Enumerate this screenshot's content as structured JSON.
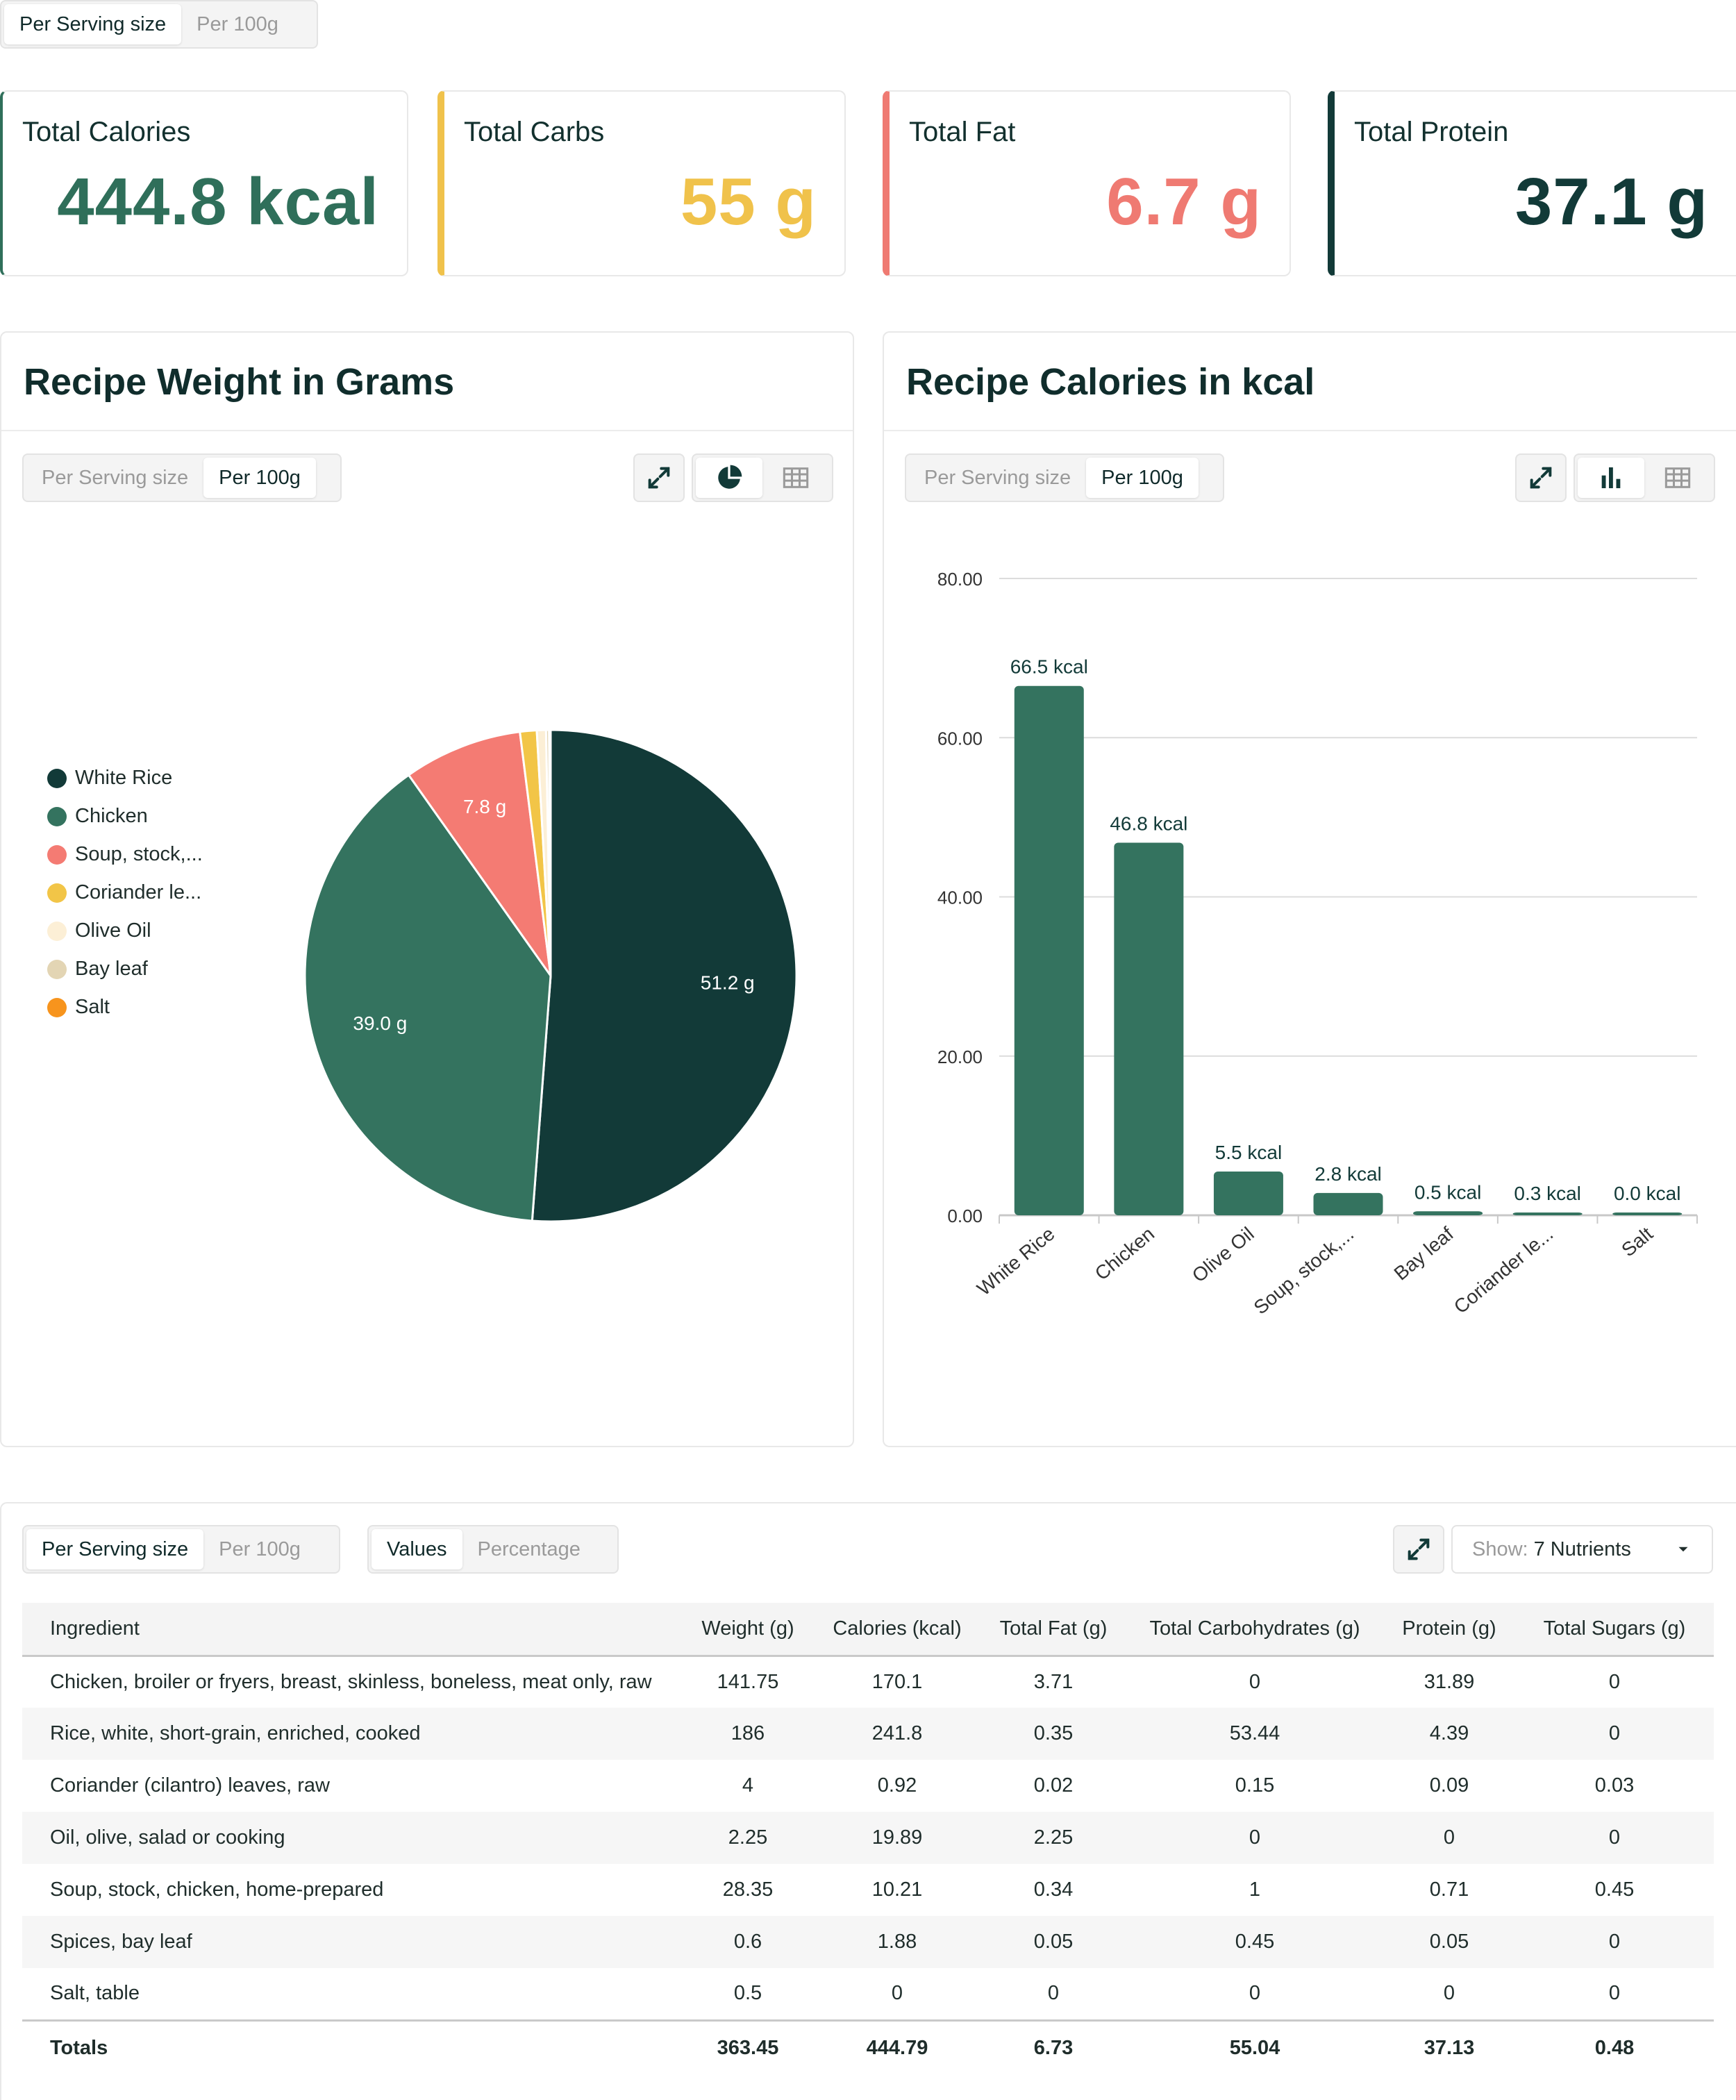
{
  "top_toggle": {
    "options": [
      "Per Serving size",
      "Per 100g"
    ],
    "active": 0
  },
  "stats": [
    {
      "label": "Total Calories",
      "value": "444.8 kcal",
      "color": "#2f6f5a"
    },
    {
      "label": "Total Carbs",
      "value": "55 g",
      "color": "#f0c24b"
    },
    {
      "label": "Total Fat",
      "value": "6.7 g",
      "color": "#ef7a72"
    },
    {
      "label": "Total Protein",
      "value": "37.1 g",
      "color": "#123a38"
    }
  ],
  "weight_panel": {
    "title": "Recipe Weight in Grams",
    "toggle": [
      "Per Serving size",
      "Per 100g"
    ],
    "active": 1,
    "icons": {
      "expand": "expand-icon",
      "pie": "pie-chart-icon",
      "table": "table-icon"
    }
  },
  "calories_panel": {
    "title": "Recipe Calories in kcal",
    "toggle": [
      "Per Serving size",
      "Per 100g"
    ],
    "active": 1,
    "icons": {
      "expand": "expand-icon",
      "bar": "bar-chart-icon",
      "table": "table-icon"
    }
  },
  "chart_data": [
    {
      "type": "pie",
      "title": "Recipe Weight in Grams",
      "legend_position": "left",
      "categories": [
        "White Rice",
        "Chicken",
        "Soup, stock,...",
        "Coriander le...",
        "Olive Oil",
        "Bay leaf",
        "Salt"
      ],
      "values": [
        51.2,
        39.0,
        7.8,
        1.1,
        0.6,
        0.2,
        0.1
      ],
      "data_labels": [
        "51.2 g",
        "39.0 g",
        "7.8 g",
        "",
        "",
        "",
        ""
      ],
      "colors": [
        "#123a38",
        "#34735f",
        "#f47b73",
        "#f2c547",
        "#fcefd6",
        "#e3d5b4",
        "#f7941d"
      ]
    },
    {
      "type": "bar",
      "title": "Recipe Calories in kcal",
      "categories": [
        "White Rice",
        "Chicken",
        "Olive Oil",
        "Soup, stock,...",
        "Bay leaf",
        "Coriander le...",
        "Salt"
      ],
      "values": [
        66.5,
        46.8,
        5.5,
        2.8,
        0.5,
        0.3,
        0.0
      ],
      "data_labels": [
        "66.5 kcal",
        "46.8 kcal",
        "5.5 kcal",
        "2.8 kcal",
        "0.5 kcal",
        "0.3 kcal",
        "0.0 kcal"
      ],
      "y_ticks": [
        "0.00",
        "20.00",
        "40.00",
        "60.00",
        "80.00"
      ],
      "ylim": [
        0,
        80
      ],
      "grid": true,
      "color": "#34735f"
    }
  ],
  "table_section": {
    "toggle_serving": [
      "Per Serving size",
      "Per 100g"
    ],
    "toggle_mode": [
      "Values",
      "Percentage"
    ],
    "show_label": "Show:",
    "show_value": "7 Nutrients",
    "columns": [
      "Ingredient",
      "Weight (g)",
      "Calories (kcal)",
      "Total Fat (g)",
      "Total Carbohydrates (g)",
      "Protein (g)",
      "Total Sugars (g)"
    ],
    "rows": [
      [
        "Chicken, broiler or fryers, breast, skinless, boneless, meat only, raw",
        "141.75",
        "170.1",
        "3.71",
        "0",
        "31.89",
        "0"
      ],
      [
        "Rice, white, short-grain, enriched, cooked",
        "186",
        "241.8",
        "0.35",
        "53.44",
        "4.39",
        "0"
      ],
      [
        "Coriander (cilantro) leaves, raw",
        "4",
        "0.92",
        "0.02",
        "0.15",
        "0.09",
        "0.03"
      ],
      [
        "Oil, olive, salad or cooking",
        "2.25",
        "19.89",
        "2.25",
        "0",
        "0",
        "0"
      ],
      [
        "Soup, stock, chicken, home-prepared",
        "28.35",
        "10.21",
        "0.34",
        "1",
        "0.71",
        "0.45"
      ],
      [
        "Spices, bay leaf",
        "0.6",
        "1.88",
        "0.05",
        "0.45",
        "0.05",
        "0"
      ],
      [
        "Salt, table",
        "0.5",
        "0",
        "0",
        "0",
        "0",
        "0"
      ]
    ],
    "totals": [
      "Totals",
      "363.45",
      "444.79",
      "6.73",
      "55.04",
      "37.13",
      "0.48"
    ]
  }
}
